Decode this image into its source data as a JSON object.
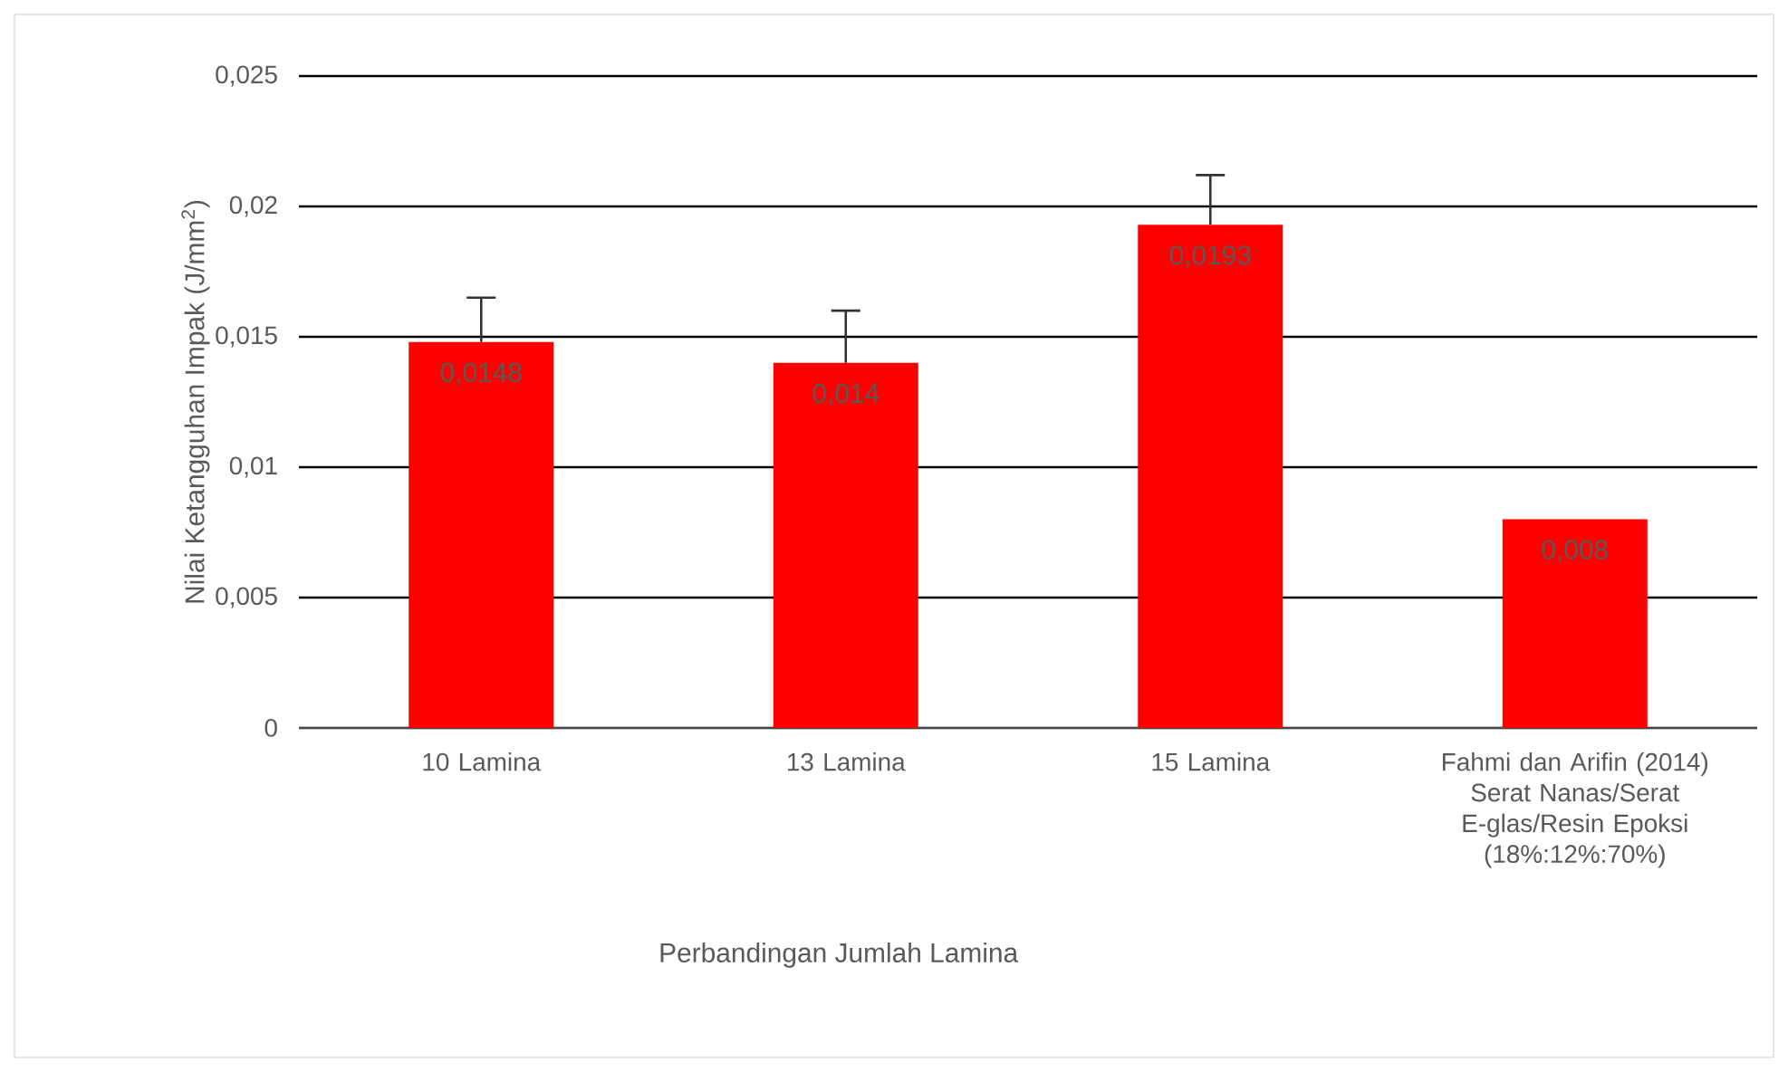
{
  "chart_data": {
    "type": "bar",
    "categories": [
      "10 Lamina",
      "13 Lamina",
      "15 Lamina",
      "Fahmi dan Arifin (2014) Serat Nanas/Serat E-glas/Resin Epoksi (18%:12%:70%)"
    ],
    "values": [
      0.0148,
      0.014,
      0.0193,
      0.008
    ],
    "value_labels": [
      "0,0148",
      "0,014",
      "0,0193",
      "0,008"
    ],
    "errors": [
      [
        0.0148,
        0.0165
      ],
      [
        0.014,
        0.016
      ],
      [
        0.0193,
        0.0212
      ],
      null
    ],
    "color": "#ff0000",
    "xlabel": "Perbandingan Jumlah Lamina",
    "ylabel": "Nilai Ketangguhan Impak (J/mm$^{2}$)",
    "ylim": [
      0,
      0.025
    ],
    "yticks": [
      {
        "value": 0,
        "label": "0"
      },
      {
        "value": 0.005,
        "label": "0,005"
      },
      {
        "value": 0.01,
        "label": "0,01"
      },
      {
        "value": 0.015,
        "label": "0,015"
      },
      {
        "value": 0.02,
        "label": "0,02"
      },
      {
        "value": 0.025,
        "label": "0,025"
      }
    ],
    "grid": "y"
  }
}
